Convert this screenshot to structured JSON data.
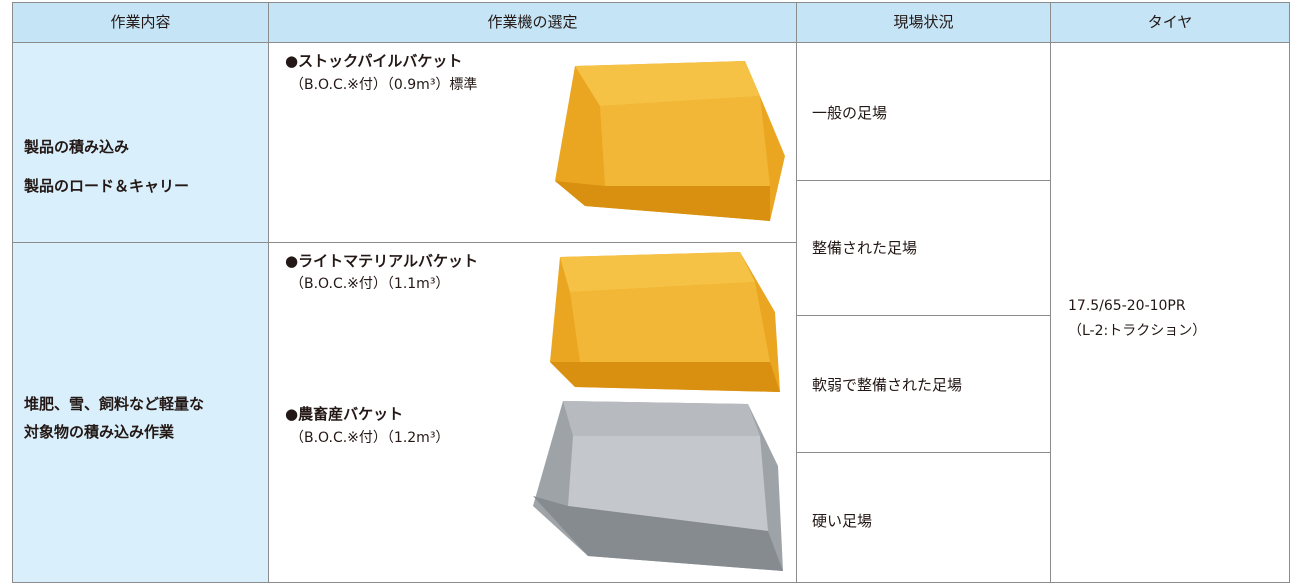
{
  "table": {
    "headers": [
      "作業内容",
      "作業機の選定",
      "現場状況",
      "タイヤ"
    ],
    "tasks": [
      [
        "製品の積み込み",
        "製品のロード＆キャリー"
      ],
      [
        "堆肥、雪、飼料など軽量な",
        "対象物の積み込み作業"
      ]
    ],
    "buckets": [
      {
        "name": "●ストックパイルバケット",
        "spec": "（B.O.C.※付）（0.9m³）標準"
      },
      {
        "name": "●ライトマテリアルバケット",
        "spec": "（B.O.C.※付）（1.1m³）"
      },
      {
        "name": "●農畜産バケット",
        "spec": "（B.O.C.※付）（1.2m³）"
      }
    ],
    "conditions": [
      "一般の足場",
      "整備された足場",
      "軟弱で整備された足場",
      "硬い足場"
    ],
    "tire": [
      "17.5/65-20-10PR",
      "（L-2:トラクション）"
    ]
  }
}
